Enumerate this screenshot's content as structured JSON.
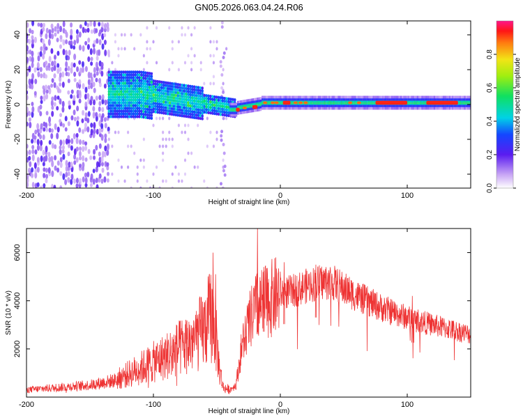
{
  "title": "GN05.2026.063.04.24.R06",
  "chart_data": [
    {
      "type": "heatmap",
      "name": "spectrogram",
      "xlabel": "Height of straight line (km)",
      "ylabel": "Frequency (Hz)",
      "xlim": [
        -200,
        150
      ],
      "ylim": [
        -48,
        48
      ],
      "xticks": [
        -200,
        -100,
        0,
        100
      ],
      "yticks": [
        -40,
        -20,
        0,
        20,
        40
      ],
      "colorbar": {
        "label": "Normalized spectral amplitude",
        "range": [
          0,
          1
        ],
        "ticks": [
          0.0,
          0.2,
          0.4,
          0.6,
          0.8
        ]
      },
      "features": {
        "noise_region": [
          -200,
          -135
        ],
        "broadband_region": [
          -135,
          -40
        ],
        "line_region": [
          -40,
          150
        ],
        "line_frequency_hz": 1,
        "peak_segments_km": [
          [
            -35,
            -32
          ],
          [
            -22,
            -18
          ],
          [
            2,
            8
          ],
          [
            75,
            100
          ],
          [
            115,
            140
          ]
        ]
      }
    },
    {
      "type": "line",
      "name": "snr",
      "xlabel": "Height of straight line (km)",
      "ylabel": "SNR (10 * v/v)",
      "xlim": [
        -200,
        150
      ],
      "ylim": [
        0,
        7000
      ],
      "xticks": [
        -200,
        -100,
        0,
        100
      ],
      "yticks": [
        2000,
        4000,
        6000
      ],
      "color": "#ee3333",
      "envelope": {
        "x": [
          -200,
          -150,
          -130,
          -110,
          -90,
          -70,
          -60,
          -55,
          -52,
          -48,
          -45,
          -40,
          -35,
          -30,
          -25,
          -20,
          -15,
          -10,
          0,
          10,
          20,
          30,
          40,
          60,
          80,
          100,
          120,
          150
        ],
        "y": [
          300,
          500,
          700,
          1200,
          1700,
          2300,
          2800,
          3400,
          3000,
          1200,
          400,
          300,
          500,
          2200,
          3000,
          3700,
          3800,
          4000,
          4300,
          4400,
          4600,
          4750,
          4800,
          4200,
          3700,
          3300,
          3000,
          2600
        ]
      },
      "spikes": [
        {
          "x": -53,
          "y": 6000
        },
        {
          "x": -51,
          "y": 5100
        },
        {
          "x": -18,
          "y": 7000
        },
        {
          "x": -13,
          "y": 5400
        },
        {
          "x": 3,
          "y": 5600
        },
        {
          "x": 28,
          "y": 5500
        },
        {
          "x": 104,
          "y": 4200
        }
      ]
    }
  ]
}
